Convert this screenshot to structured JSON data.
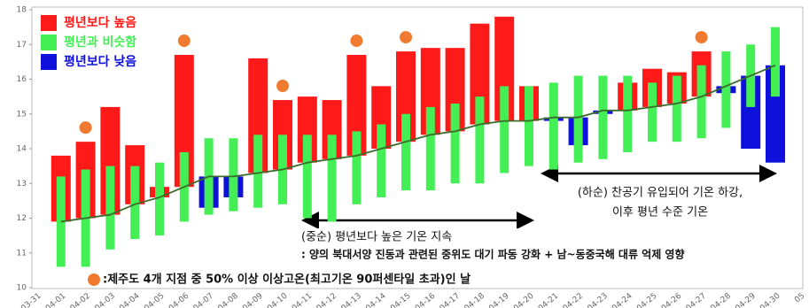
{
  "chart_data": {
    "type": "bar",
    "categories": [
      "03-31",
      "04-01",
      "04-02",
      "04-03",
      "04-04",
      "04-05",
      "04-06",
      "04-07",
      "04-08",
      "04-09",
      "04-10",
      "04-11",
      "04-12",
      "04-13",
      "04-14",
      "04-15",
      "04-16",
      "04-17",
      "04-18",
      "04-19",
      "04-20",
      "04-21",
      "04-22",
      "04-23",
      "04-24",
      "04-25",
      "04-26",
      "04-27",
      "04-28",
      "04-29",
      "04-30",
      "05"
    ],
    "observed": {
      "values": [
        null,
        13.8,
        14.2,
        15.2,
        14.1,
        12.9,
        16.7,
        12.3,
        12.6,
        16.6,
        15.4,
        15.5,
        15.4,
        16.7,
        15.8,
        16.8,
        16.9,
        16.9,
        17.6,
        17.8,
        15.8,
        14.8,
        14.1,
        15.0,
        15.9,
        16.3,
        16.2,
        16.8,
        15.6,
        14.0,
        13.6,
        null
      ]
    },
    "normal": {
      "color": "#3a6b2a",
      "values": [
        null,
        11.9,
        12.0,
        12.1,
        12.4,
        12.6,
        12.9,
        13.2,
        13.2,
        13.3,
        13.4,
        13.6,
        13.7,
        13.8,
        14.0,
        14.2,
        14.4,
        14.5,
        14.7,
        14.8,
        14.8,
        14.9,
        14.9,
        15.1,
        15.1,
        15.2,
        15.3,
        15.5,
        15.8,
        16.1,
        16.4,
        null
      ]
    },
    "series": [
      {
        "name": "평년보다 높음",
        "color": "#ff1a1a"
      },
      {
        "name": "평년과 비슷함",
        "color": "#44ee55",
        "low": [
          null,
          10.6,
          10.6,
          11.1,
          11.4,
          11.5,
          11.9,
          12.1,
          12.2,
          12.3,
          12.4,
          12.0,
          11.9,
          12.4,
          12.6,
          12.8,
          12.8,
          13.0,
          13.0,
          13.3,
          13.5,
          13.4,
          13.6,
          13.7,
          13.9,
          14.2,
          14.2,
          14.3,
          14.6,
          15.2,
          15.5,
          null
        ],
        "high": [
          null,
          13.2,
          13.4,
          13.5,
          13.5,
          13.6,
          13.9,
          14.3,
          14.3,
          14.4,
          14.4,
          14.4,
          14.4,
          14.5,
          14.7,
          15.0,
          15.2,
          15.3,
          15.5,
          15.8,
          15.8,
          15.9,
          16.1,
          16.1,
          16.1,
          15.9,
          16.1,
          16.4,
          16.8,
          17.0,
          17.5,
          null
        ]
      },
      {
        "name": "평년보다 낮음",
        "color": "#1010dd"
      }
    ],
    "marked": [
      false,
      false,
      true,
      false,
      false,
      false,
      true,
      false,
      false,
      false,
      true,
      false,
      false,
      true,
      false,
      true,
      false,
      false,
      false,
      false,
      false,
      false,
      false,
      false,
      false,
      false,
      false,
      true,
      false,
      false,
      false,
      false
    ],
    "marker_color": "#f07a30",
    "ylim": [
      10,
      18
    ],
    "yticks": [
      10,
      11,
      12,
      13,
      14,
      15,
      16,
      17,
      18
    ],
    "annotations": [
      "(중순) 평년보다 높은 기온 지속",
      ": 양의 북대서양 진동과 관련된 중위도 대기 파동 강화 + 남~동중국해 대류 억제 영향",
      "(하순) 찬공기 유입되어 기온 하강,",
      "이후 평년 수준 기온"
    ],
    "note": ":제주도 4개 지점 중 50% 이상 이상고온(최고기온 90퍼센타일 초과)인 날"
  }
}
